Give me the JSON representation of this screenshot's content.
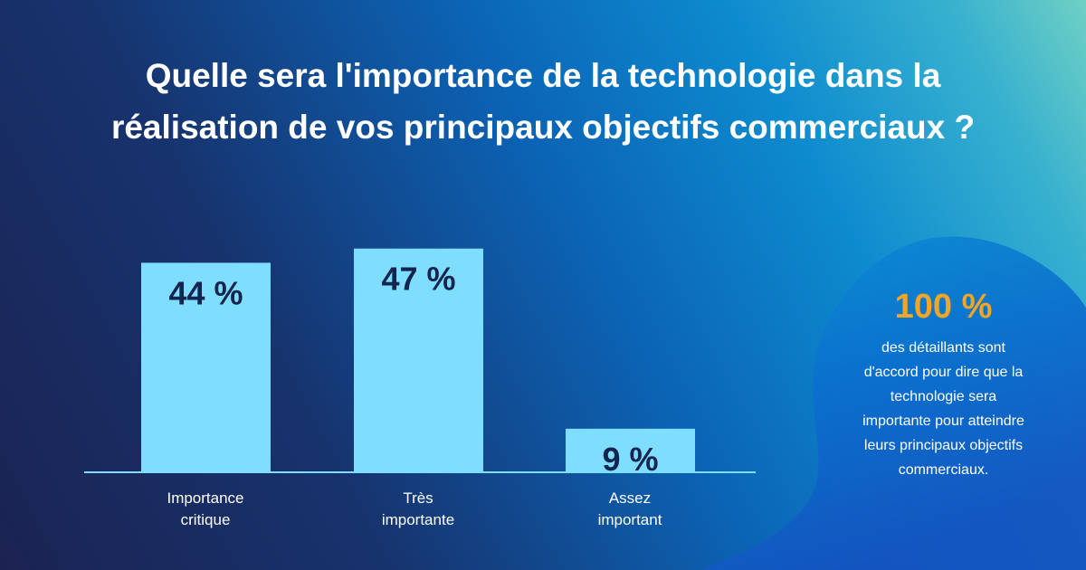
{
  "title_lines": [
    "Quelle sera l'importance de la technologie dans la",
    "réalisation de vos principaux objectifs commerciaux ?"
  ],
  "chart_data": {
    "type": "bar",
    "title": "Quelle sera l'importance de la technologie dans la réalisation de vos principaux objectifs commerciaux ?",
    "categories": [
      "Importance critique",
      "Très importante",
      "Assez important"
    ],
    "category_lines": [
      [
        "Importance",
        "critique"
      ],
      [
        "Très",
        "importante"
      ],
      [
        "Assez",
        "important"
      ]
    ],
    "values": [
      44,
      47,
      9
    ],
    "value_labels": [
      "44 %",
      "47 %",
      "9 %"
    ],
    "unit": "%",
    "ylim": [
      0,
      50
    ],
    "grid": false,
    "legend": "none",
    "bar_color": "#7fddff",
    "value_label_color": "#13254f",
    "baseline_color": "#7fddff"
  },
  "callout": {
    "value": "100 %",
    "text_lines": [
      "des détaillants sont",
      "d'accord pour dire que la",
      "technologie sera",
      "importante pour atteindre",
      "leurs principaux objectifs",
      "commerciaux."
    ],
    "value_color": "#f4a522"
  }
}
